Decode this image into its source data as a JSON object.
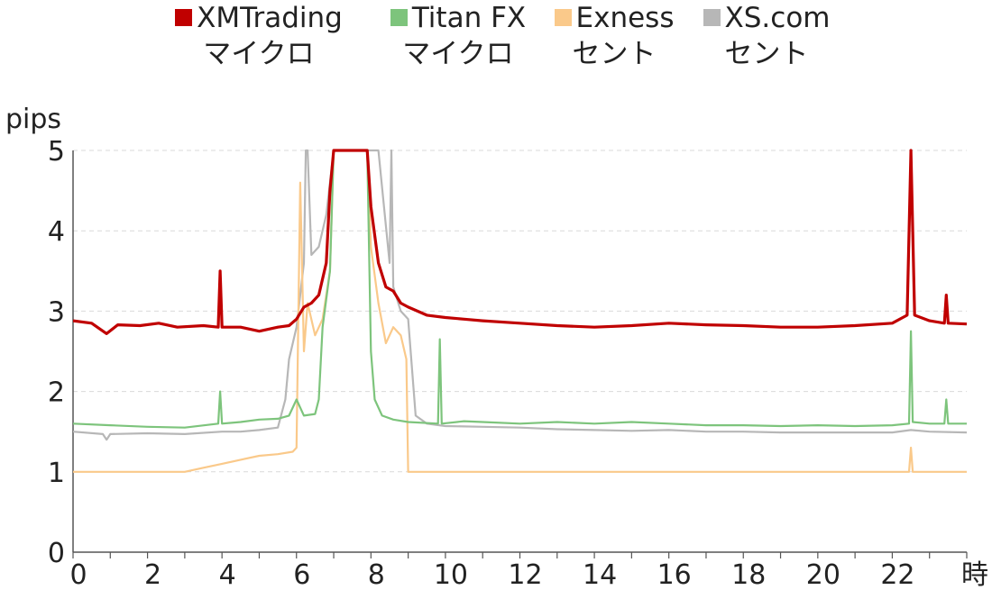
{
  "chart_data": {
    "type": "line",
    "ylabel": "pips",
    "xlabel": "時",
    "xlim": [
      0,
      24
    ],
    "ylim": [
      0,
      5
    ],
    "xticks": [
      0,
      2,
      4,
      6,
      8,
      10,
      12,
      14,
      16,
      18,
      20,
      22
    ],
    "yticks": [
      0,
      1,
      2,
      3,
      4,
      5
    ],
    "grid": "horizontal dashed",
    "legend_position": "top",
    "series": [
      {
        "name": "XMTrading",
        "name_line2": "マイクロ",
        "color": "#c00000",
        "points": [
          [
            0,
            2.88
          ],
          [
            0.5,
            2.85
          ],
          [
            0.9,
            2.72
          ],
          [
            1.2,
            2.83
          ],
          [
            1.8,
            2.82
          ],
          [
            2.3,
            2.85
          ],
          [
            2.8,
            2.8
          ],
          [
            3.5,
            2.82
          ],
          [
            3.9,
            2.8
          ],
          [
            3.95,
            3.5
          ],
          [
            4.0,
            2.8
          ],
          [
            4.5,
            2.8
          ],
          [
            5.0,
            2.75
          ],
          [
            5.5,
            2.8
          ],
          [
            5.8,
            2.82
          ],
          [
            6.0,
            2.9
          ],
          [
            6.2,
            3.05
          ],
          [
            6.4,
            3.1
          ],
          [
            6.6,
            3.2
          ],
          [
            6.8,
            3.6
          ],
          [
            6.9,
            4.5
          ],
          [
            7.0,
            5.0
          ],
          [
            7.9,
            5.0
          ],
          [
            8.0,
            4.3
          ],
          [
            8.2,
            3.6
          ],
          [
            8.4,
            3.3
          ],
          [
            8.6,
            3.25
          ],
          [
            8.8,
            3.1
          ],
          [
            9.0,
            3.05
          ],
          [
            9.5,
            2.95
          ],
          [
            10.0,
            2.92
          ],
          [
            10.5,
            2.9
          ],
          [
            11.0,
            2.88
          ],
          [
            12.0,
            2.85
          ],
          [
            13.0,
            2.82
          ],
          [
            14.0,
            2.8
          ],
          [
            15.0,
            2.82
          ],
          [
            16.0,
            2.85
          ],
          [
            17.0,
            2.83
          ],
          [
            18.0,
            2.82
          ],
          [
            19.0,
            2.8
          ],
          [
            20.0,
            2.8
          ],
          [
            21.0,
            2.82
          ],
          [
            22.0,
            2.85
          ],
          [
            22.4,
            2.95
          ],
          [
            22.5,
            5.0
          ],
          [
            22.6,
            2.95
          ],
          [
            23.0,
            2.88
          ],
          [
            23.4,
            2.85
          ],
          [
            23.45,
            3.2
          ],
          [
            23.5,
            2.85
          ],
          [
            24.0,
            2.84
          ]
        ]
      },
      {
        "name": "Titan FX",
        "name_line2": "マイクロ",
        "color": "#7dc47c",
        "points": [
          [
            0,
            1.6
          ],
          [
            1.0,
            1.58
          ],
          [
            2.0,
            1.56
          ],
          [
            3.0,
            1.55
          ],
          [
            3.9,
            1.6
          ],
          [
            3.95,
            2.0
          ],
          [
            4.0,
            1.6
          ],
          [
            4.5,
            1.62
          ],
          [
            5.0,
            1.65
          ],
          [
            5.5,
            1.66
          ],
          [
            5.8,
            1.7
          ],
          [
            6.0,
            1.9
          ],
          [
            6.2,
            1.7
          ],
          [
            6.5,
            1.72
          ],
          [
            6.6,
            1.9
          ],
          [
            6.7,
            2.8
          ],
          [
            6.9,
            3.5
          ],
          [
            7.0,
            5.0
          ],
          [
            7.9,
            5.0
          ],
          [
            8.0,
            2.5
          ],
          [
            8.1,
            1.9
          ],
          [
            8.3,
            1.7
          ],
          [
            8.6,
            1.65
          ],
          [
            9.0,
            1.62
          ],
          [
            9.8,
            1.6
          ],
          [
            9.85,
            2.65
          ],
          [
            9.9,
            1.6
          ],
          [
            10.5,
            1.63
          ],
          [
            11.0,
            1.62
          ],
          [
            12.0,
            1.6
          ],
          [
            13.0,
            1.62
          ],
          [
            14.0,
            1.6
          ],
          [
            15.0,
            1.62
          ],
          [
            16.0,
            1.6
          ],
          [
            17.0,
            1.58
          ],
          [
            18.0,
            1.58
          ],
          [
            19.0,
            1.57
          ],
          [
            20.0,
            1.58
          ],
          [
            21.0,
            1.57
          ],
          [
            22.0,
            1.58
          ],
          [
            22.45,
            1.6
          ],
          [
            22.5,
            2.75
          ],
          [
            22.55,
            1.62
          ],
          [
            23.0,
            1.6
          ],
          [
            23.4,
            1.6
          ],
          [
            23.45,
            1.9
          ],
          [
            23.5,
            1.6
          ],
          [
            24.0,
            1.6
          ]
        ]
      },
      {
        "name": "Exness",
        "name_line2": "セント",
        "color": "#fac98a",
        "points": [
          [
            0,
            1.0
          ],
          [
            1.0,
            1.0
          ],
          [
            2.0,
            1.0
          ],
          [
            3.0,
            1.0
          ],
          [
            3.5,
            1.05
          ],
          [
            4.0,
            1.1
          ],
          [
            4.5,
            1.15
          ],
          [
            5.0,
            1.2
          ],
          [
            5.5,
            1.22
          ],
          [
            5.9,
            1.25
          ],
          [
            6.0,
            1.3
          ],
          [
            6.1,
            4.6
          ],
          [
            6.2,
            2.5
          ],
          [
            6.3,
            3.1
          ],
          [
            6.5,
            2.7
          ],
          [
            6.7,
            2.9
          ],
          [
            6.9,
            3.5
          ],
          [
            7.0,
            5.0
          ],
          [
            7.9,
            5.0
          ],
          [
            8.0,
            3.8
          ],
          [
            8.2,
            3.1
          ],
          [
            8.4,
            2.6
          ],
          [
            8.6,
            2.8
          ],
          [
            8.8,
            2.7
          ],
          [
            8.95,
            2.4
          ],
          [
            9.0,
            1.0
          ],
          [
            10.0,
            1.0
          ],
          [
            12.0,
            1.0
          ],
          [
            14.0,
            1.0
          ],
          [
            16.0,
            1.0
          ],
          [
            18.0,
            1.0
          ],
          [
            20.0,
            1.0
          ],
          [
            22.0,
            1.0
          ],
          [
            22.45,
            1.0
          ],
          [
            22.5,
            1.3
          ],
          [
            22.55,
            1.0
          ],
          [
            23.0,
            1.0
          ],
          [
            24.0,
            1.0
          ]
        ]
      },
      {
        "name": "XS.com",
        "name_line2": "セント",
        "color": "#b7b7b7",
        "points": [
          [
            0,
            1.5
          ],
          [
            0.8,
            1.47
          ],
          [
            0.9,
            1.4
          ],
          [
            1.0,
            1.47
          ],
          [
            2.0,
            1.48
          ],
          [
            3.0,
            1.47
          ],
          [
            4.0,
            1.5
          ],
          [
            4.5,
            1.5
          ],
          [
            5.0,
            1.52
          ],
          [
            5.5,
            1.55
          ],
          [
            5.7,
            1.9
          ],
          [
            5.8,
            2.4
          ],
          [
            6.0,
            2.8
          ],
          [
            6.1,
            3.2
          ],
          [
            6.2,
            3.6
          ],
          [
            6.25,
            5.0
          ],
          [
            6.3,
            5.0
          ],
          [
            6.4,
            3.7
          ],
          [
            6.6,
            3.8
          ],
          [
            6.8,
            4.2
          ],
          [
            7.0,
            5.0
          ],
          [
            8.0,
            5.0
          ],
          [
            8.2,
            5.0
          ],
          [
            8.5,
            3.6
          ],
          [
            8.55,
            5.0
          ],
          [
            8.6,
            3.3
          ],
          [
            8.8,
            3.0
          ],
          [
            9.0,
            2.9
          ],
          [
            9.2,
            1.7
          ],
          [
            9.5,
            1.6
          ],
          [
            10.0,
            1.57
          ],
          [
            11.0,
            1.56
          ],
          [
            12.0,
            1.55
          ],
          [
            13.0,
            1.53
          ],
          [
            14.0,
            1.52
          ],
          [
            15.0,
            1.51
          ],
          [
            16.0,
            1.52
          ],
          [
            17.0,
            1.5
          ],
          [
            18.0,
            1.5
          ],
          [
            19.0,
            1.49
          ],
          [
            20.0,
            1.49
          ],
          [
            21.0,
            1.49
          ],
          [
            22.0,
            1.49
          ],
          [
            22.5,
            1.52
          ],
          [
            23.0,
            1.5
          ],
          [
            24.0,
            1.49
          ]
        ]
      }
    ]
  }
}
